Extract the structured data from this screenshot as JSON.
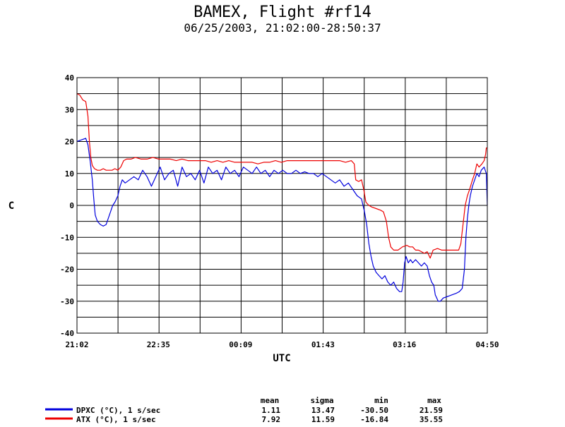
{
  "chart_data": {
    "type": "line",
    "title": "BAMEX, Flight #rf14",
    "subtitle": "06/25/2003, 21:02:00-28:50:37",
    "xlabel": "UTC",
    "ylabel": "C",
    "xlim": [
      0,
      28117
    ],
    "ylim": [
      -40,
      40
    ],
    "x_tick_labels": [
      "21:02",
      "22:35",
      "00:09",
      "01:43",
      "03:16",
      "04:50"
    ],
    "x_tick_positions_seconds": [
      0,
      5580,
      11220,
      16860,
      22440,
      28117
    ],
    "y_ticks": [
      40,
      30,
      20,
      10,
      0,
      -10,
      -20,
      -30,
      -40
    ],
    "grid": true,
    "stats_header": {
      "mean": "mean",
      "sigma": "sigma",
      "min": "min",
      "max": "max"
    },
    "series": [
      {
        "name": "DPXC (°C), 1 s/sec",
        "color": "#0000dd",
        "stats": {
          "mean": "1.11",
          "sigma": "13.47",
          "min": "-30.50",
          "max": "21.59"
        },
        "points": [
          [
            0,
            20
          ],
          [
            300,
            20.5
          ],
          [
            600,
            21
          ],
          [
            750,
            19
          ],
          [
            900,
            14
          ],
          [
            1050,
            8
          ],
          [
            1150,
            2
          ],
          [
            1250,
            -3
          ],
          [
            1400,
            -5
          ],
          [
            1600,
            -6
          ],
          [
            1800,
            -6.5
          ],
          [
            2000,
            -6
          ],
          [
            2150,
            -4
          ],
          [
            2300,
            -2
          ],
          [
            2450,
            0
          ],
          [
            2600,
            1
          ],
          [
            2800,
            3
          ],
          [
            2950,
            6
          ],
          [
            3100,
            8
          ],
          [
            3300,
            7
          ],
          [
            3600,
            8
          ],
          [
            3900,
            9
          ],
          [
            4200,
            8
          ],
          [
            4500,
            11
          ],
          [
            4800,
            9
          ],
          [
            5100,
            6
          ],
          [
            5400,
            9
          ],
          [
            5700,
            12
          ],
          [
            6000,
            8
          ],
          [
            6300,
            10
          ],
          [
            6600,
            11
          ],
          [
            6900,
            6
          ],
          [
            7200,
            12
          ],
          [
            7500,
            9
          ],
          [
            7800,
            10
          ],
          [
            8100,
            8
          ],
          [
            8400,
            11
          ],
          [
            8700,
            7
          ],
          [
            9000,
            12
          ],
          [
            9300,
            10
          ],
          [
            9600,
            11
          ],
          [
            9900,
            8
          ],
          [
            10200,
            12
          ],
          [
            10500,
            10
          ],
          [
            10800,
            11
          ],
          [
            11100,
            9
          ],
          [
            11400,
            12
          ],
          [
            11700,
            11
          ],
          [
            12000,
            10
          ],
          [
            12300,
            12
          ],
          [
            12600,
            10
          ],
          [
            12900,
            11
          ],
          [
            13200,
            9
          ],
          [
            13500,
            11
          ],
          [
            13800,
            10
          ],
          [
            14100,
            11
          ],
          [
            14400,
            10
          ],
          [
            14700,
            10
          ],
          [
            15000,
            11
          ],
          [
            15300,
            10
          ],
          [
            15600,
            10.5
          ],
          [
            15900,
            10
          ],
          [
            16200,
            10
          ],
          [
            16500,
            9
          ],
          [
            16800,
            10
          ],
          [
            17100,
            9
          ],
          [
            17400,
            8
          ],
          [
            17700,
            7
          ],
          [
            18000,
            8
          ],
          [
            18300,
            6
          ],
          [
            18600,
            7
          ],
          [
            18900,
            5
          ],
          [
            19200,
            3
          ],
          [
            19500,
            2
          ],
          [
            19700,
            -2
          ],
          [
            19850,
            -6
          ],
          [
            20000,
            -12
          ],
          [
            20150,
            -16
          ],
          [
            20300,
            -19
          ],
          [
            20500,
            -21
          ],
          [
            20700,
            -22
          ],
          [
            20900,
            -23
          ],
          [
            21100,
            -22
          ],
          [
            21300,
            -24
          ],
          [
            21500,
            -25
          ],
          [
            21700,
            -24
          ],
          [
            21900,
            -26
          ],
          [
            22100,
            -27
          ],
          [
            22250,
            -27
          ],
          [
            22350,
            -24
          ],
          [
            22450,
            -18
          ],
          [
            22550,
            -16
          ],
          [
            22700,
            -18
          ],
          [
            22850,
            -17
          ],
          [
            23000,
            -18
          ],
          [
            23200,
            -17
          ],
          [
            23400,
            -18
          ],
          [
            23600,
            -19
          ],
          [
            23800,
            -18
          ],
          [
            24000,
            -19
          ],
          [
            24150,
            -22
          ],
          [
            24300,
            -24
          ],
          [
            24450,
            -25
          ],
          [
            24550,
            -28
          ],
          [
            24650,
            -29
          ],
          [
            24750,
            -30
          ],
          [
            24900,
            -30
          ],
          [
            25100,
            -29
          ],
          [
            25400,
            -28.5
          ],
          [
            25700,
            -28
          ],
          [
            26000,
            -27.5
          ],
          [
            26200,
            -27
          ],
          [
            26400,
            -26
          ],
          [
            26550,
            -20
          ],
          [
            26650,
            -10
          ],
          [
            26750,
            -4
          ],
          [
            26850,
            0
          ],
          [
            26950,
            3
          ],
          [
            27100,
            6
          ],
          [
            27250,
            8
          ],
          [
            27400,
            10
          ],
          [
            27550,
            9
          ],
          [
            27700,
            11
          ],
          [
            27900,
            12
          ],
          [
            28050,
            10
          ],
          [
            28117,
            0
          ]
        ]
      },
      {
        "name": "ATX (°C), 1 s/sec",
        "color": "#ee0000",
        "stats": {
          "mean": "7.92",
          "sigma": "11.59",
          "min": "-16.84",
          "max": "35.55"
        },
        "points": [
          [
            0,
            35
          ],
          [
            200,
            34.5
          ],
          [
            400,
            33
          ],
          [
            600,
            32.5
          ],
          [
            750,
            28
          ],
          [
            850,
            20
          ],
          [
            950,
            15
          ],
          [
            1050,
            12.5
          ],
          [
            1200,
            11.5
          ],
          [
            1400,
            11
          ],
          [
            1600,
            11
          ],
          [
            1800,
            11.5
          ],
          [
            2000,
            11
          ],
          [
            2200,
            11
          ],
          [
            2400,
            11
          ],
          [
            2600,
            11.5
          ],
          [
            2800,
            11
          ],
          [
            3000,
            12
          ],
          [
            3200,
            14
          ],
          [
            3400,
            14.5
          ],
          [
            3700,
            14.5
          ],
          [
            4000,
            15
          ],
          [
            4400,
            14.5
          ],
          [
            4800,
            14.5
          ],
          [
            5200,
            15
          ],
          [
            5600,
            14.5
          ],
          [
            6000,
            14.5
          ],
          [
            6400,
            14.5
          ],
          [
            6800,
            14
          ],
          [
            7200,
            14.5
          ],
          [
            7600,
            14
          ],
          [
            8000,
            14
          ],
          [
            8400,
            14
          ],
          [
            8800,
            14
          ],
          [
            9200,
            13.5
          ],
          [
            9600,
            14
          ],
          [
            10000,
            13.5
          ],
          [
            10400,
            14
          ],
          [
            10800,
            13.5
          ],
          [
            11200,
            13.5
          ],
          [
            11600,
            13.5
          ],
          [
            12000,
            13.5
          ],
          [
            12400,
            13
          ],
          [
            12800,
            13.5
          ],
          [
            13200,
            13.5
          ],
          [
            13600,
            14
          ],
          [
            14000,
            13.5
          ],
          [
            14400,
            14
          ],
          [
            14800,
            14
          ],
          [
            15200,
            14
          ],
          [
            15600,
            14
          ],
          [
            16000,
            14
          ],
          [
            16400,
            14
          ],
          [
            16800,
            14
          ],
          [
            17200,
            14
          ],
          [
            17600,
            14
          ],
          [
            18000,
            14
          ],
          [
            18400,
            13.5
          ],
          [
            18800,
            14
          ],
          [
            19000,
            13
          ],
          [
            19100,
            8
          ],
          [
            19300,
            7.5
          ],
          [
            19500,
            8
          ],
          [
            19650,
            5
          ],
          [
            19800,
            1
          ],
          [
            20000,
            0
          ],
          [
            20200,
            -0.5
          ],
          [
            20500,
            -1
          ],
          [
            20800,
            -1.5
          ],
          [
            21000,
            -2
          ],
          [
            21200,
            -5
          ],
          [
            21350,
            -10
          ],
          [
            21500,
            -13
          ],
          [
            21700,
            -14
          ],
          [
            22000,
            -14
          ],
          [
            22300,
            -13
          ],
          [
            22600,
            -12.5
          ],
          [
            22800,
            -13
          ],
          [
            23000,
            -13
          ],
          [
            23200,
            -14
          ],
          [
            23400,
            -14
          ],
          [
            23600,
            -14.5
          ],
          [
            23800,
            -15
          ],
          [
            24000,
            -14.5
          ],
          [
            24200,
            -16.5
          ],
          [
            24400,
            -14
          ],
          [
            24700,
            -13.5
          ],
          [
            25000,
            -14
          ],
          [
            25300,
            -14
          ],
          [
            25600,
            -14
          ],
          [
            25900,
            -14
          ],
          [
            26150,
            -14
          ],
          [
            26300,
            -12
          ],
          [
            26450,
            -6
          ],
          [
            26600,
            0
          ],
          [
            26750,
            3
          ],
          [
            26900,
            5
          ],
          [
            27100,
            8
          ],
          [
            27250,
            10
          ],
          [
            27400,
            13
          ],
          [
            27550,
            12
          ],
          [
            27750,
            13
          ],
          [
            27900,
            14
          ],
          [
            28000,
            16
          ],
          [
            28050,
            18
          ],
          [
            28117,
            18
          ]
        ]
      }
    ]
  }
}
